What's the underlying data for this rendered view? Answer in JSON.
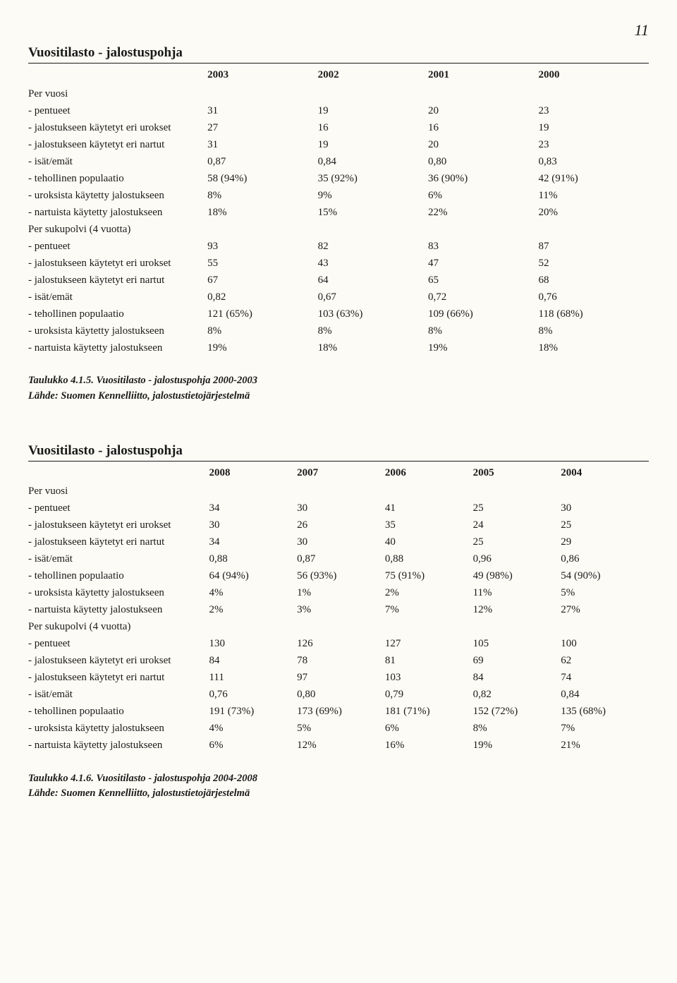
{
  "page_number": "11",
  "table1": {
    "title": "Vuositilasto - jalostuspohja",
    "years": [
      "2003",
      "2002",
      "2001",
      "2000"
    ],
    "section_a": "Per vuosi",
    "section_b": "Per sukupolvi (4 vuotta)",
    "rows_a": [
      {
        "label": "- pentueet",
        "v": [
          "31",
          "19",
          "20",
          "23"
        ]
      },
      {
        "label": "- jalostukseen käytetyt eri urokset",
        "v": [
          "27",
          "16",
          "16",
          "19"
        ]
      },
      {
        "label": "- jalostukseen käytetyt eri nartut",
        "v": [
          "31",
          "19",
          "20",
          "23"
        ]
      },
      {
        "label": "- isät/emät",
        "v": [
          "0,87",
          "0,84",
          "0,80",
          "0,83"
        ]
      },
      {
        "label": "- tehollinen populaatio",
        "v": [
          "58 (94%)",
          "35 (92%)",
          "36 (90%)",
          "42 (91%)"
        ]
      },
      {
        "label": "- uroksista käytetty jalostukseen",
        "v": [
          "8%",
          "9%",
          "6%",
          "11%"
        ]
      },
      {
        "label": "- nartuista käytetty jalostukseen",
        "v": [
          "18%",
          "15%",
          "22%",
          "20%"
        ]
      }
    ],
    "rows_b": [
      {
        "label": "- pentueet",
        "v": [
          "93",
          "82",
          "83",
          "87"
        ]
      },
      {
        "label": "- jalostukseen käytetyt eri urokset",
        "v": [
          "55",
          "43",
          "47",
          "52"
        ]
      },
      {
        "label": "- jalostukseen käytetyt eri nartut",
        "v": [
          "67",
          "64",
          "65",
          "68"
        ]
      },
      {
        "label": "- isät/emät",
        "v": [
          "0,82",
          "0,67",
          "0,72",
          "0,76"
        ]
      },
      {
        "label": "- tehollinen populaatio",
        "v": [
          "121 (65%)",
          "103 (63%)",
          "109 (66%)",
          "118 (68%)"
        ]
      },
      {
        "label": "- uroksista käytetty jalostukseen",
        "v": [
          "8%",
          "8%",
          "8%",
          "8%"
        ]
      },
      {
        "label": "- nartuista käytetty jalostukseen",
        "v": [
          "19%",
          "18%",
          "19%",
          "18%"
        ]
      }
    ],
    "caption": "Taulukko 4.1.5. Vuositilasto - jalostuspohja 2000-2003",
    "source": "Lähde: Suomen Kennelliitto, jalostustietojärjestelmä"
  },
  "table2": {
    "title": "Vuositilasto - jalostuspohja",
    "years": [
      "2008",
      "2007",
      "2006",
      "2005",
      "2004"
    ],
    "section_a": "Per vuosi",
    "section_b": "Per sukupolvi (4 vuotta)",
    "rows_a": [
      {
        "label": "- pentueet",
        "v": [
          "34",
          "30",
          "41",
          "25",
          "30"
        ]
      },
      {
        "label": "- jalostukseen käytetyt eri urokset",
        "v": [
          "30",
          "26",
          "35",
          "24",
          "25"
        ]
      },
      {
        "label": "- jalostukseen käytetyt eri nartut",
        "v": [
          "34",
          "30",
          "40",
          "25",
          "29"
        ]
      },
      {
        "label": "- isät/emät",
        "v": [
          "0,88",
          "0,87",
          "0,88",
          "0,96",
          "0,86"
        ]
      },
      {
        "label": "- tehollinen populaatio",
        "v": [
          "64 (94%)",
          "56 (93%)",
          "75 (91%)",
          "49 (98%)",
          "54 (90%)"
        ]
      },
      {
        "label": "- uroksista käytetty jalostukseen",
        "v": [
          "4%",
          "1%",
          "2%",
          "11%",
          "5%"
        ]
      },
      {
        "label": "- nartuista käytetty jalostukseen",
        "v": [
          "2%",
          "3%",
          "7%",
          "12%",
          "27%"
        ]
      }
    ],
    "rows_b": [
      {
        "label": "- pentueet",
        "v": [
          "130",
          "126",
          "127",
          "105",
          "100"
        ]
      },
      {
        "label": "- jalostukseen käytetyt eri urokset",
        "v": [
          "84",
          "78",
          "81",
          "69",
          "62"
        ]
      },
      {
        "label": "- jalostukseen käytetyt eri nartut",
        "v": [
          "111",
          "97",
          "103",
          "84",
          "74"
        ]
      },
      {
        "label": "- isät/emät",
        "v": [
          "0,76",
          "0,80",
          "0,79",
          "0,82",
          "0,84"
        ]
      },
      {
        "label": "- tehollinen populaatio",
        "v": [
          "191 (73%)",
          "173 (69%)",
          "181 (71%)",
          "152 (72%)",
          "135 (68%)"
        ]
      },
      {
        "label": "- uroksista käytetty jalostukseen",
        "v": [
          "4%",
          "5%",
          "6%",
          "8%",
          "7%"
        ]
      },
      {
        "label": "- nartuista käytetty jalostukseen",
        "v": [
          "6%",
          "12%",
          "16%",
          "19%",
          "21%"
        ]
      }
    ],
    "caption": "Taulukko 4.1.6. Vuositilasto - jalostuspohja 2004-2008",
    "source": "Lähde: Suomen Kennelliitto, jalostustietojärjestelmä"
  }
}
